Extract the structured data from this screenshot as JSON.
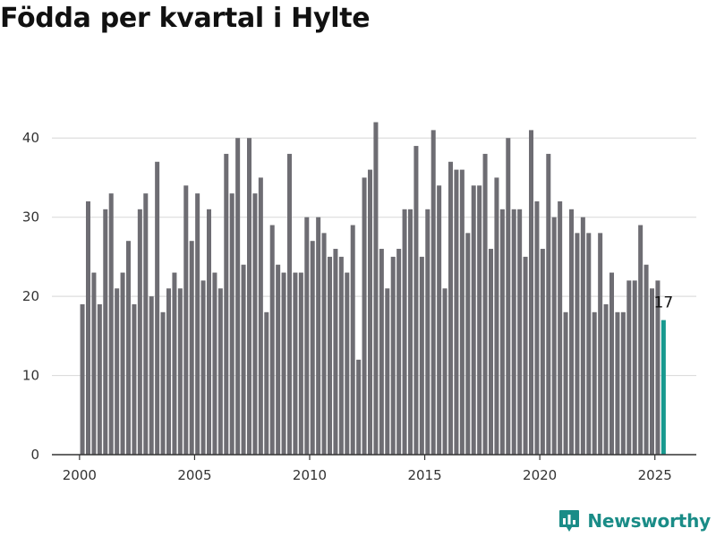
{
  "chart_data": {
    "type": "bar",
    "title": "Födda per kvartal i Hylte",
    "xlabel": "",
    "ylabel": "",
    "x_start_year": 2000,
    "x_step_year": 0.25,
    "values": [
      19,
      32,
      23,
      19,
      31,
      33,
      21,
      23,
      27,
      19,
      31,
      33,
      20,
      37,
      18,
      21,
      23,
      21,
      34,
      27,
      33,
      22,
      31,
      23,
      21,
      38,
      33,
      40,
      24,
      40,
      33,
      35,
      18,
      29,
      24,
      23,
      38,
      23,
      23,
      30,
      27,
      30,
      28,
      25,
      26,
      25,
      23,
      29,
      12,
      35,
      36,
      42,
      26,
      21,
      25,
      26,
      31,
      31,
      39,
      25,
      31,
      41,
      34,
      21,
      37,
      36,
      36,
      28,
      34,
      34,
      38,
      26,
      35,
      31,
      40,
      31,
      31,
      25,
      41,
      32,
      26,
      38,
      30,
      32,
      18,
      31,
      28,
      30,
      28,
      18,
      28,
      19,
      23,
      18,
      18,
      22,
      22,
      29,
      24,
      21,
      22,
      17
    ],
    "highlight_index": 101,
    "highlight_label": "17",
    "xticks": [
      "2000",
      "2005",
      "2010",
      "2015",
      "2020",
      "2025"
    ],
    "xtick_values": [
      2000,
      2005,
      2010,
      2015,
      2020,
      2025
    ],
    "yticks": [
      "0",
      "10",
      "20",
      "30",
      "40"
    ],
    "ytick_values": [
      0,
      10,
      20,
      30,
      40
    ],
    "ylim": [
      0,
      45
    ],
    "xlim": [
      1998.8,
      2026.8
    ],
    "grid": true,
    "bar_color": "#6e6d73",
    "highlight_color": "#17998f",
    "grid_color": "#dddddd"
  },
  "brand": {
    "name": "Newsworthy",
    "icon": "newsworthy-logo-icon",
    "color": "#1a8c87"
  }
}
